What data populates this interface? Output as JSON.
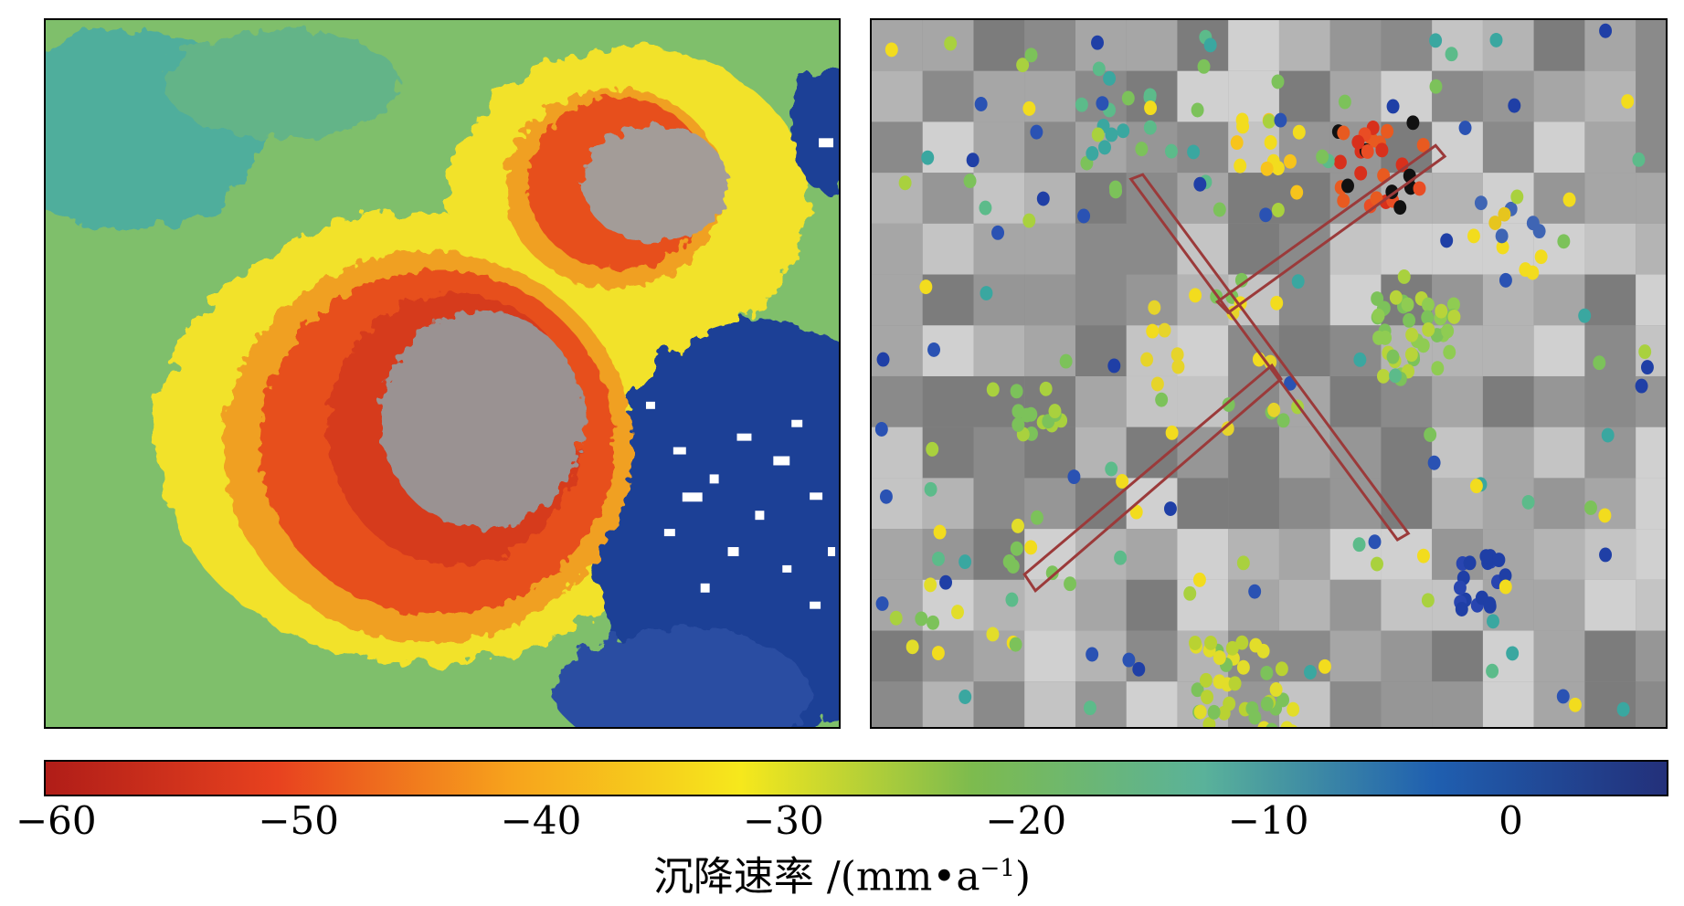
{
  "colorbar": {
    "ticks": [
      {
        "value": -60,
        "label": "−60"
      },
      {
        "value": -50,
        "label": "−50"
      },
      {
        "value": -40,
        "label": "−40"
      },
      {
        "value": -30,
        "label": "−30"
      },
      {
        "value": -20,
        "label": "−20"
      },
      {
        "value": -10,
        "label": "−10"
      },
      {
        "value": 0,
        "label": "0"
      }
    ],
    "range": [
      -60.5,
      6.5
    ],
    "title": "沉降速率 /(mm",
    "title_dot": "•",
    "title_unit": "a",
    "title_sup": "−1",
    "title_close": ")",
    "colors": [
      "#b01d18",
      "#e8421f",
      "#f7a21c",
      "#f6e81c",
      "#7dbb4e",
      "#5ab29a",
      "#1f5fb0",
      "#23307a"
    ]
  },
  "panels": {
    "left": {
      "description_free": true
    },
    "right": {
      "description_free": true
    }
  }
}
